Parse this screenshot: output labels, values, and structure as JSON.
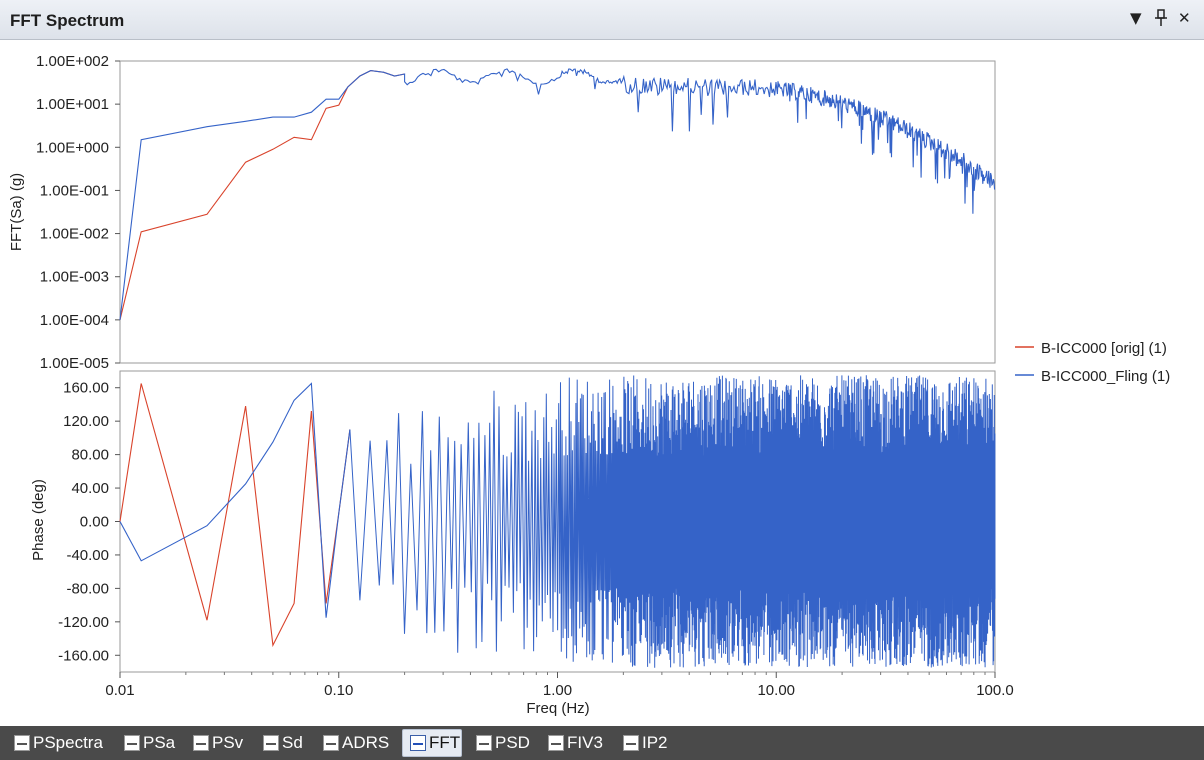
{
  "window": {
    "title": "FFT Spectrum"
  },
  "titlebar": {
    "dropdown_icon": "chevron-down-icon",
    "pin_icon": "pin-icon",
    "close_icon": "close-icon"
  },
  "tabs": [
    {
      "label": "PSpectra",
      "icon": "pspectra-icon",
      "active": false
    },
    {
      "label": "PSa",
      "icon": "psa-icon",
      "active": false
    },
    {
      "label": "PSv",
      "icon": "psv-icon",
      "active": false
    },
    {
      "label": "Sd",
      "icon": "sd-icon",
      "active": false
    },
    {
      "label": "ADRS",
      "icon": "adrs-icon",
      "active": false
    },
    {
      "label": "FFT",
      "icon": "fft-icon",
      "active": true
    },
    {
      "label": "PSD",
      "icon": "psd-icon",
      "active": false
    },
    {
      "label": "FIV3",
      "icon": "fiv3-icon",
      "active": false
    },
    {
      "label": "IP2",
      "icon": "ip2-icon",
      "active": false
    }
  ],
  "colors": {
    "orig": "#d9432b",
    "fling": "#3563c8"
  },
  "chart_data": {
    "type": "line",
    "xlabel": "Freq (Hz)",
    "x_scale": "log",
    "xlim": [
      0.01,
      100
    ],
    "x_ticks": [
      "0.01",
      "0.10",
      "1.00",
      "10.00",
      "100.0"
    ],
    "legend": {
      "placement": "right",
      "entries": [
        "B-ICC000 [orig]  (1)",
        "B-ICC000_Fling (1)"
      ]
    },
    "panels": [
      {
        "name": "amplitude",
        "ylabel": "FFT(Sa) (g)",
        "y_scale": "log",
        "ylim": [
          1e-05,
          100
        ],
        "y_ticks": [
          "1.00E+002",
          "1.00E+001",
          "1.00E+000",
          "1.00E-001",
          "1.00E-002",
          "1.00E-003",
          "1.00E-004",
          "1.00E-005"
        ],
        "series": [
          {
            "name": "B-ICC000 [orig]  (1)",
            "x": [
              0.01,
              0.0125,
              0.025,
              0.0375,
              0.05,
              0.0625,
              0.075,
              0.0875,
              0.1,
              0.11,
              0.125,
              0.14,
              0.16,
              0.18,
              0.2
            ],
            "y": [
              0.0001,
              0.011,
              0.028,
              0.45,
              0.9,
              1.7,
              1.5,
              8.0,
              9.5,
              25,
              45,
              60,
              55,
              45,
              50
            ]
          },
          {
            "name": "B-ICC000_Fling (1)",
            "x": [
              0.01,
              0.0125,
              0.025,
              0.0375,
              0.05,
              0.0625,
              0.075,
              0.0875,
              0.1,
              0.11,
              0.125,
              0.14,
              0.16,
              0.18,
              0.2
            ],
            "y": [
              0.0001,
              1.5,
              3.0,
              4.0,
              5.0,
              5.0,
              6.5,
              13,
              13,
              25,
              45,
              60,
              55,
              45,
              50
            ]
          }
        ]
      },
      {
        "name": "phase",
        "ylabel": "Phase (deg)",
        "y_scale": "linear",
        "ylim": [
          -180,
          180
        ],
        "y_ticks": [
          "160.00",
          "120.00",
          "80.00",
          "40.00",
          "0.00",
          "-40.00",
          "-80.00",
          "-120.00",
          "-160.00"
        ],
        "series": [
          {
            "name": "B-ICC000 [orig]  (1)",
            "x": [
              0.01,
              0.0125,
              0.025,
              0.0375,
              0.05,
              0.0625,
              0.075,
              0.0875,
              0.1,
              0.1125
            ],
            "y": [
              0,
              165,
              -118,
              138,
              -148,
              -98,
              132,
              -98,
              10,
              110
            ]
          },
          {
            "name": "B-ICC000_Fling (1)",
            "x": [
              0.01,
              0.0125,
              0.025,
              0.0375,
              0.05,
              0.0625,
              0.075,
              0.0875,
              0.1,
              0.1125
            ],
            "y": [
              0,
              -47,
              -5,
              45,
              95,
              145,
              165,
              -115,
              10,
              110
            ]
          }
        ]
      }
    ]
  }
}
